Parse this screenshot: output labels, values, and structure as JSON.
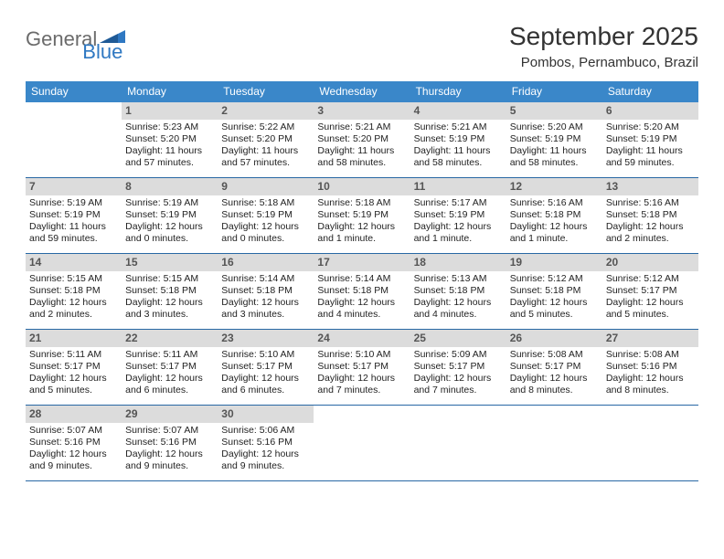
{
  "logo": {
    "text_main": "General",
    "text_sub": "Blue"
  },
  "title": "September 2025",
  "location": "Pombos, Pernambuco, Brazil",
  "colors": {
    "header_bg": "#3a87c9",
    "header_text": "#ffffff",
    "daynum_bg": "#dcdcdc",
    "daynum_text": "#555555",
    "body_text": "#222222",
    "rule": "#2868a5",
    "logo_gray": "#6b6b6b",
    "logo_blue": "#2f78c2"
  },
  "weekdays": [
    "Sunday",
    "Monday",
    "Tuesday",
    "Wednesday",
    "Thursday",
    "Friday",
    "Saturday"
  ],
  "weeks": [
    [
      {
        "blank": true
      },
      {
        "n": "1",
        "sunrise": "5:23 AM",
        "sunset": "5:20 PM",
        "daylight": "11 hours and 57 minutes."
      },
      {
        "n": "2",
        "sunrise": "5:22 AM",
        "sunset": "5:20 PM",
        "daylight": "11 hours and 57 minutes."
      },
      {
        "n": "3",
        "sunrise": "5:21 AM",
        "sunset": "5:20 PM",
        "daylight": "11 hours and 58 minutes."
      },
      {
        "n": "4",
        "sunrise": "5:21 AM",
        "sunset": "5:19 PM",
        "daylight": "11 hours and 58 minutes."
      },
      {
        "n": "5",
        "sunrise": "5:20 AM",
        "sunset": "5:19 PM",
        "daylight": "11 hours and 58 minutes."
      },
      {
        "n": "6",
        "sunrise": "5:20 AM",
        "sunset": "5:19 PM",
        "daylight": "11 hours and 59 minutes."
      }
    ],
    [
      {
        "n": "7",
        "sunrise": "5:19 AM",
        "sunset": "5:19 PM",
        "daylight": "11 hours and 59 minutes."
      },
      {
        "n": "8",
        "sunrise": "5:19 AM",
        "sunset": "5:19 PM",
        "daylight": "12 hours and 0 minutes."
      },
      {
        "n": "9",
        "sunrise": "5:18 AM",
        "sunset": "5:19 PM",
        "daylight": "12 hours and 0 minutes."
      },
      {
        "n": "10",
        "sunrise": "5:18 AM",
        "sunset": "5:19 PM",
        "daylight": "12 hours and 1 minute."
      },
      {
        "n": "11",
        "sunrise": "5:17 AM",
        "sunset": "5:19 PM",
        "daylight": "12 hours and 1 minute."
      },
      {
        "n": "12",
        "sunrise": "5:16 AM",
        "sunset": "5:18 PM",
        "daylight": "12 hours and 1 minute."
      },
      {
        "n": "13",
        "sunrise": "5:16 AM",
        "sunset": "5:18 PM",
        "daylight": "12 hours and 2 minutes."
      }
    ],
    [
      {
        "n": "14",
        "sunrise": "5:15 AM",
        "sunset": "5:18 PM",
        "daylight": "12 hours and 2 minutes."
      },
      {
        "n": "15",
        "sunrise": "5:15 AM",
        "sunset": "5:18 PM",
        "daylight": "12 hours and 3 minutes."
      },
      {
        "n": "16",
        "sunrise": "5:14 AM",
        "sunset": "5:18 PM",
        "daylight": "12 hours and 3 minutes."
      },
      {
        "n": "17",
        "sunrise": "5:14 AM",
        "sunset": "5:18 PM",
        "daylight": "12 hours and 4 minutes."
      },
      {
        "n": "18",
        "sunrise": "5:13 AM",
        "sunset": "5:18 PM",
        "daylight": "12 hours and 4 minutes."
      },
      {
        "n": "19",
        "sunrise": "5:12 AM",
        "sunset": "5:18 PM",
        "daylight": "12 hours and 5 minutes."
      },
      {
        "n": "20",
        "sunrise": "5:12 AM",
        "sunset": "5:17 PM",
        "daylight": "12 hours and 5 minutes."
      }
    ],
    [
      {
        "n": "21",
        "sunrise": "5:11 AM",
        "sunset": "5:17 PM",
        "daylight": "12 hours and 5 minutes."
      },
      {
        "n": "22",
        "sunrise": "5:11 AM",
        "sunset": "5:17 PM",
        "daylight": "12 hours and 6 minutes."
      },
      {
        "n": "23",
        "sunrise": "5:10 AM",
        "sunset": "5:17 PM",
        "daylight": "12 hours and 6 minutes."
      },
      {
        "n": "24",
        "sunrise": "5:10 AM",
        "sunset": "5:17 PM",
        "daylight": "12 hours and 7 minutes."
      },
      {
        "n": "25",
        "sunrise": "5:09 AM",
        "sunset": "5:17 PM",
        "daylight": "12 hours and 7 minutes."
      },
      {
        "n": "26",
        "sunrise": "5:08 AM",
        "sunset": "5:17 PM",
        "daylight": "12 hours and 8 minutes."
      },
      {
        "n": "27",
        "sunrise": "5:08 AM",
        "sunset": "5:16 PM",
        "daylight": "12 hours and 8 minutes."
      }
    ],
    [
      {
        "n": "28",
        "sunrise": "5:07 AM",
        "sunset": "5:16 PM",
        "daylight": "12 hours and 9 minutes."
      },
      {
        "n": "29",
        "sunrise": "5:07 AM",
        "sunset": "5:16 PM",
        "daylight": "12 hours and 9 minutes."
      },
      {
        "n": "30",
        "sunrise": "5:06 AM",
        "sunset": "5:16 PM",
        "daylight": "12 hours and 9 minutes."
      },
      {
        "blank": true
      },
      {
        "blank": true
      },
      {
        "blank": true
      },
      {
        "blank": true
      }
    ]
  ],
  "labels": {
    "sunrise_prefix": "Sunrise: ",
    "sunset_prefix": "Sunset: ",
    "daylight_prefix": "Daylight: "
  }
}
